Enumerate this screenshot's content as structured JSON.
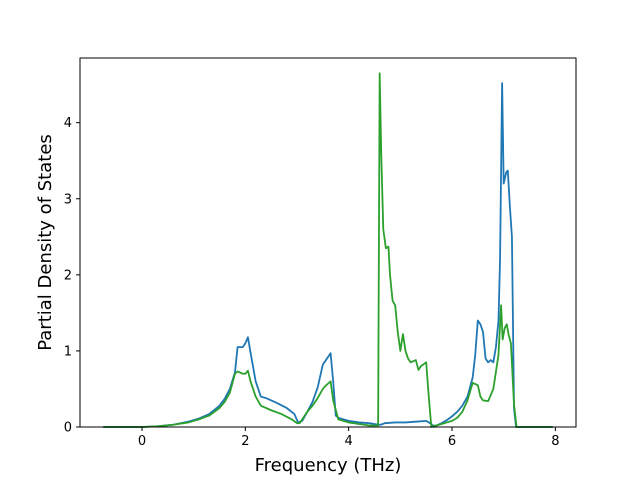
{
  "chart_data": {
    "type": "line",
    "title": "",
    "xlabel": "Frequency (THz)",
    "ylabel": "Partial Density of States",
    "xlim": [
      -1.2,
      8.4
    ],
    "ylim": [
      0,
      4.85
    ],
    "xticks": [
      0,
      2,
      4,
      6,
      8
    ],
    "xtick_labels": [
      "0",
      "2",
      "4",
      "6",
      "8"
    ],
    "yticks": [
      0,
      1,
      2,
      3,
      4
    ],
    "ytick_labels": [
      "0",
      "1",
      "2",
      "3",
      "4"
    ],
    "grid": false,
    "legend": "none",
    "series": [
      {
        "color": "#1f77b4",
        "x": [
          -0.75,
          -0.3,
          0,
          0.3,
          0.6,
          0.9,
          1.1,
          1.3,
          1.5,
          1.6,
          1.7,
          1.8,
          1.85,
          1.9,
          1.95,
          2.0,
          2.05,
          2.1,
          2.2,
          2.3,
          2.4,
          2.6,
          2.8,
          2.95,
          3.02,
          3.1,
          3.2,
          3.3,
          3.4,
          3.5,
          3.55,
          3.6,
          3.65,
          3.7,
          3.75,
          3.8,
          4.0,
          4.2,
          4.4,
          4.58,
          4.62,
          4.7,
          4.9,
          5.1,
          5.3,
          5.5,
          5.6,
          5.65,
          5.7,
          5.8,
          5.9,
          6.0,
          6.1,
          6.2,
          6.3,
          6.4,
          6.45,
          6.5,
          6.55,
          6.6,
          6.65,
          6.7,
          6.75,
          6.8,
          6.85,
          6.9,
          6.93,
          6.97,
          7.0,
          7.05,
          7.08,
          7.12,
          7.16,
          7.2,
          7.24,
          7.28,
          7.4,
          7.6,
          7.95
        ],
        "y": [
          0.0,
          0.0,
          0.0,
          0.01,
          0.03,
          0.07,
          0.11,
          0.17,
          0.28,
          0.37,
          0.5,
          0.72,
          1.05,
          1.05,
          1.05,
          1.1,
          1.18,
          0.98,
          0.6,
          0.4,
          0.38,
          0.32,
          0.25,
          0.17,
          0.06,
          0.08,
          0.2,
          0.33,
          0.52,
          0.82,
          0.87,
          0.92,
          0.97,
          0.6,
          0.15,
          0.12,
          0.08,
          0.06,
          0.05,
          0.03,
          0.03,
          0.05,
          0.06,
          0.06,
          0.07,
          0.08,
          0.04,
          0.0,
          0.02,
          0.05,
          0.09,
          0.14,
          0.2,
          0.28,
          0.4,
          0.65,
          0.95,
          1.4,
          1.35,
          1.25,
          0.9,
          0.85,
          0.88,
          0.85,
          1.05,
          1.4,
          2.2,
          4.52,
          3.2,
          3.35,
          3.37,
          2.9,
          2.5,
          0.25,
          0.0,
          0.0,
          0.0,
          0.0,
          0.0
        ]
      },
      {
        "color": "#2ca02c",
        "x": [
          -0.75,
          -0.3,
          0,
          0.3,
          0.6,
          0.9,
          1.1,
          1.3,
          1.5,
          1.6,
          1.7,
          1.8,
          1.85,
          1.95,
          2.0,
          2.05,
          2.1,
          2.2,
          2.3,
          2.5,
          2.7,
          2.9,
          3.0,
          3.05,
          3.1,
          3.2,
          3.3,
          3.4,
          3.5,
          3.55,
          3.6,
          3.65,
          3.7,
          3.8,
          4.0,
          4.2,
          4.4,
          4.57,
          4.6,
          4.63,
          4.67,
          4.72,
          4.77,
          4.8,
          4.85,
          4.9,
          4.95,
          5.0,
          5.05,
          5.1,
          5.15,
          5.2,
          5.3,
          5.35,
          5.4,
          5.5,
          5.55,
          5.6,
          5.65,
          5.7,
          5.8,
          5.9,
          6.0,
          6.1,
          6.2,
          6.3,
          6.4,
          6.5,
          6.55,
          6.6,
          6.7,
          6.8,
          6.9,
          6.95,
          6.98,
          7.02,
          7.06,
          7.1,
          7.14,
          7.2,
          7.25,
          7.3,
          7.5,
          7.95
        ],
        "y": [
          0.0,
          0.0,
          0.0,
          0.01,
          0.03,
          0.06,
          0.1,
          0.15,
          0.25,
          0.33,
          0.45,
          0.7,
          0.73,
          0.7,
          0.7,
          0.74,
          0.6,
          0.4,
          0.28,
          0.22,
          0.17,
          0.1,
          0.05,
          0.05,
          0.1,
          0.2,
          0.28,
          0.38,
          0.5,
          0.54,
          0.57,
          0.6,
          0.35,
          0.1,
          0.06,
          0.04,
          0.02,
          0.02,
          4.65,
          3.6,
          2.6,
          2.35,
          2.37,
          2.0,
          1.66,
          1.6,
          1.25,
          1.0,
          1.22,
          1.0,
          0.9,
          0.85,
          0.88,
          0.75,
          0.8,
          0.85,
          0.4,
          0.0,
          0.02,
          0.02,
          0.04,
          0.06,
          0.08,
          0.12,
          0.2,
          0.35,
          0.58,
          0.55,
          0.4,
          0.35,
          0.34,
          0.5,
          0.95,
          1.6,
          1.15,
          1.3,
          1.35,
          1.2,
          1.1,
          0.3,
          0.0,
          0.0,
          0.0,
          0.0
        ]
      }
    ]
  }
}
